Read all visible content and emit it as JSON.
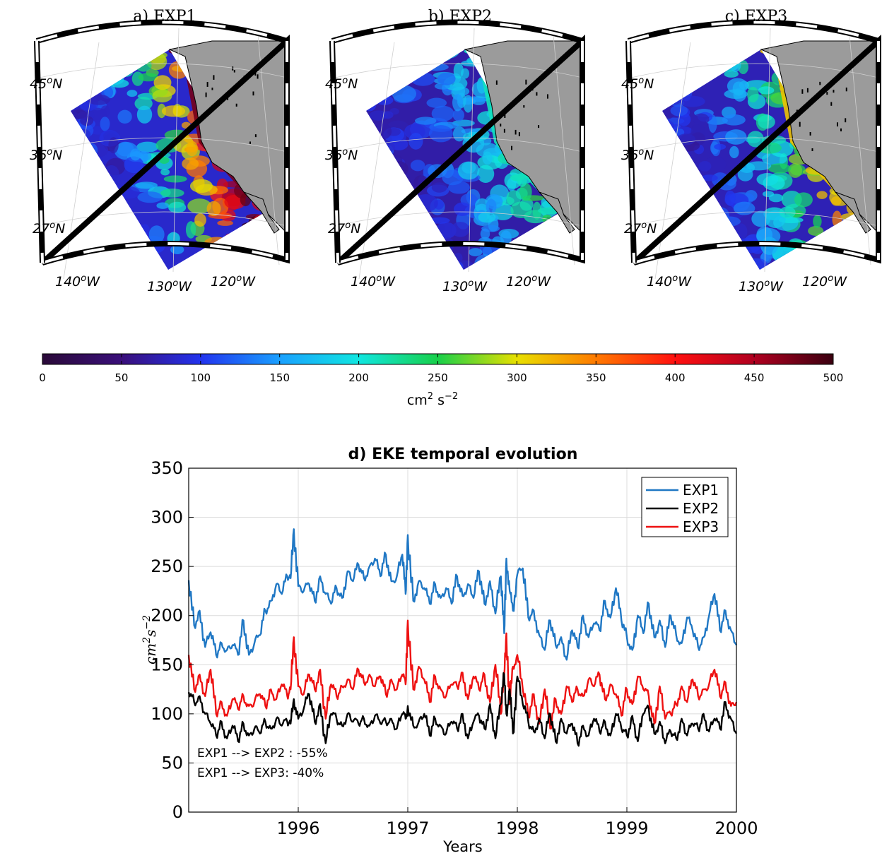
{
  "maps": {
    "colormap_stops": [
      "#2a0a38",
      "#3a0f7a",
      "#2233ee",
      "#1aa0ff",
      "#10e6e0",
      "#18d04a",
      "#e8e000",
      "#ff7a00",
      "#ff1010",
      "#b00020",
      "#3a0010"
    ],
    "panels": [
      {
        "title": "a) EXP1",
        "intensity": 1.0
      },
      {
        "title": "b) EXP2",
        "intensity": 0.38
      },
      {
        "title": "c) EXP3",
        "intensity": 0.62
      }
    ],
    "lat_labels": [
      "45",
      "36",
      "27"
    ],
    "lat_unit": "N",
    "lon_labels": [
      "140",
      "130",
      "120"
    ],
    "lon_unit": "W",
    "degree_symbol": "o"
  },
  "colorbar": {
    "ticks": [
      "0",
      "50",
      "100",
      "150",
      "200",
      "250",
      "300",
      "350",
      "400",
      "450",
      "500"
    ],
    "range": [
      0,
      500
    ],
    "label": "cm",
    "label_sup1": "2",
    "label_mid": " s",
    "label_sup2": "−2"
  },
  "chart_data": {
    "type": "line",
    "title": "d) EKE temporal evolution",
    "xlabel": "Years",
    "ylabel_base1": "cm",
    "ylabel_sup1": "2",
    "ylabel_base2": "s",
    "ylabel_sup2": "−2",
    "xlim": [
      1995.0,
      2000.0
    ],
    "ylim": [
      0,
      350
    ],
    "xticks": [
      1996,
      1997,
      1998,
      1999,
      2000
    ],
    "yticks": [
      0,
      50,
      100,
      150,
      200,
      250,
      300,
      350
    ],
    "grid": true,
    "legend_position": "top-right",
    "annotations": [
      "EXP1 --> EXP2 : -55%",
      "EXP1 --> EXP3: -40%"
    ],
    "series": [
      {
        "name": "EXP1",
        "color": "#1f77c4",
        "x": [
          1995.0,
          1995.05,
          1995.1,
          1995.15,
          1995.2,
          1995.25,
          1995.3,
          1995.35,
          1995.4,
          1995.45,
          1995.5,
          1995.55,
          1995.6,
          1995.65,
          1995.7,
          1995.75,
          1995.8,
          1995.85,
          1995.9,
          1995.93,
          1995.96,
          1996.0,
          1996.05,
          1996.1,
          1996.15,
          1996.2,
          1996.25,
          1996.3,
          1996.35,
          1996.4,
          1996.45,
          1996.5,
          1996.55,
          1996.6,
          1996.65,
          1996.7,
          1996.75,
          1996.8,
          1996.85,
          1996.9,
          1996.95,
          1996.98,
          1997.0,
          1997.05,
          1997.1,
          1997.15,
          1997.2,
          1997.25,
          1997.3,
          1997.35,
          1997.4,
          1997.45,
          1997.5,
          1997.55,
          1997.6,
          1997.65,
          1997.7,
          1997.75,
          1997.8,
          1997.85,
          1997.88,
          1997.9,
          1997.93,
          1997.96,
          1998.0,
          1998.05,
          1998.1,
          1998.15,
          1998.2,
          1998.25,
          1998.3,
          1998.35,
          1998.4,
          1998.45,
          1998.5,
          1998.55,
          1998.6,
          1998.65,
          1998.7,
          1998.75,
          1998.8,
          1998.85,
          1998.9,
          1998.95,
          1999.0,
          1999.05,
          1999.1,
          1999.15,
          1999.2,
          1999.25,
          1999.3,
          1999.35,
          1999.4,
          1999.45,
          1999.5,
          1999.55,
          1999.6,
          1999.65,
          1999.7,
          1999.75,
          1999.8,
          1999.85,
          1999.9,
          1999.95,
          2000.0
        ],
        "values": [
          236,
          190,
          205,
          168,
          183,
          160,
          172,
          165,
          170,
          160,
          195,
          160,
          172,
          180,
          205,
          215,
          232,
          222,
          240,
          238,
          288,
          230,
          225,
          232,
          215,
          240,
          222,
          212,
          228,
          218,
          245,
          235,
          252,
          238,
          250,
          258,
          240,
          262,
          235,
          240,
          262,
          222,
          282,
          215,
          235,
          228,
          212,
          232,
          218,
          228,
          212,
          240,
          220,
          232,
          218,
          245,
          212,
          235,
          202,
          240,
          182,
          258,
          225,
          205,
          242,
          248,
          198,
          205,
          180,
          165,
          195,
          170,
          178,
          155,
          185,
          168,
          200,
          178,
          192,
          185,
          215,
          198,
          228,
          195,
          178,
          165,
          200,
          182,
          212,
          178,
          195,
          168,
          200,
          180,
          172,
          198,
          185,
          168,
          178,
          200,
          222,
          185,
          205,
          185,
          170
        ]
      },
      {
        "name": "EXP2",
        "color": "#000000",
        "x": [
          1995.0,
          1995.05,
          1995.1,
          1995.15,
          1995.2,
          1995.25,
          1995.3,
          1995.35,
          1995.4,
          1995.45,
          1995.5,
          1995.55,
          1995.6,
          1995.65,
          1995.7,
          1995.75,
          1995.8,
          1995.85,
          1995.9,
          1995.93,
          1995.96,
          1996.0,
          1996.05,
          1996.1,
          1996.15,
          1996.2,
          1996.25,
          1996.3,
          1996.35,
          1996.4,
          1996.45,
          1996.5,
          1996.55,
          1996.6,
          1996.65,
          1996.7,
          1996.75,
          1996.8,
          1996.85,
          1996.9,
          1996.95,
          1996.98,
          1997.0,
          1997.05,
          1997.1,
          1997.15,
          1997.2,
          1997.25,
          1997.3,
          1997.35,
          1997.4,
          1997.45,
          1997.5,
          1997.55,
          1997.6,
          1997.65,
          1997.7,
          1997.75,
          1997.8,
          1997.85,
          1997.88,
          1997.9,
          1997.93,
          1997.96,
          1998.0,
          1998.05,
          1998.1,
          1998.15,
          1998.2,
          1998.25,
          1998.3,
          1998.35,
          1998.4,
          1998.45,
          1998.5,
          1998.55,
          1998.6,
          1998.65,
          1998.7,
          1998.75,
          1998.8,
          1998.85,
          1998.9,
          1998.95,
          1999.0,
          1999.05,
          1999.1,
          1999.15,
          1999.2,
          1999.25,
          1999.3,
          1999.35,
          1999.4,
          1999.45,
          1999.5,
          1999.55,
          1999.6,
          1999.65,
          1999.7,
          1999.75,
          1999.8,
          1999.85,
          1999.9,
          1999.95,
          2000.0
        ],
        "values": [
          122,
          112,
          118,
          100,
          90,
          78,
          92,
          75,
          88,
          72,
          90,
          78,
          85,
          80,
          92,
          85,
          95,
          88,
          92,
          90,
          115,
          95,
          105,
          120,
          92,
          110,
          70,
          100,
          95,
          88,
          100,
          92,
          90,
          95,
          88,
          98,
          90,
          92,
          95,
          85,
          100,
          95,
          108,
          88,
          92,
          100,
          78,
          95,
          88,
          80,
          92,
          85,
          100,
          75,
          92,
          98,
          85,
          110,
          75,
          110,
          140,
          100,
          125,
          80,
          138,
          110,
          92,
          82,
          95,
          75,
          100,
          72,
          95,
          80,
          90,
          70,
          88,
          78,
          95,
          82,
          92,
          78,
          100,
          85,
          78,
          98,
          72,
          100,
          105,
          80,
          92,
          70,
          82,
          75,
          95,
          78,
          90,
          85,
          100,
          82,
          95,
          85,
          112,
          95,
          80
        ]
      },
      {
        "name": "EXP3",
        "color": "#ee1111",
        "x": [
          1995.0,
          1995.05,
          1995.1,
          1995.15,
          1995.2,
          1995.25,
          1995.3,
          1995.35,
          1995.4,
          1995.45,
          1995.5,
          1995.55,
          1995.6,
          1995.65,
          1995.7,
          1995.75,
          1995.8,
          1995.85,
          1995.9,
          1995.93,
          1995.96,
          1996.0,
          1996.05,
          1996.1,
          1996.15,
          1996.2,
          1996.25,
          1996.3,
          1996.35,
          1996.4,
          1996.45,
          1996.5,
          1996.55,
          1996.6,
          1996.65,
          1996.7,
          1996.75,
          1996.8,
          1996.85,
          1996.9,
          1996.95,
          1996.98,
          1997.0,
          1997.05,
          1997.1,
          1997.15,
          1997.2,
          1997.25,
          1997.3,
          1997.35,
          1997.4,
          1997.45,
          1997.5,
          1997.55,
          1997.6,
          1997.65,
          1997.7,
          1997.75,
          1997.8,
          1997.85,
          1997.88,
          1997.9,
          1997.93,
          1997.96,
          1998.0,
          1998.05,
          1998.1,
          1998.15,
          1998.2,
          1998.25,
          1998.3,
          1998.35,
          1998.4,
          1998.45,
          1998.5,
          1998.55,
          1998.6,
          1998.65,
          1998.7,
          1998.75,
          1998.8,
          1998.85,
          1998.9,
          1998.95,
          1999.0,
          1999.05,
          1999.1,
          1999.15,
          1999.2,
          1999.25,
          1999.3,
          1999.35,
          1999.4,
          1999.45,
          1999.5,
          1999.55,
          1999.6,
          1999.65,
          1999.7,
          1999.75,
          1999.8,
          1999.85,
          1999.9,
          1999.95,
          2000.0
        ],
        "values": [
          160,
          125,
          140,
          118,
          145,
          100,
          112,
          98,
          115,
          105,
          118,
          108,
          112,
          120,
          108,
          125,
          115,
          130,
          118,
          125,
          178,
          128,
          120,
          140,
          125,
          145,
          95,
          130,
          118,
          128,
          135,
          125,
          145,
          132,
          140,
          128,
          138,
          120,
          135,
          125,
          140,
          130,
          195,
          125,
          148,
          135,
          112,
          138,
          125,
          118,
          130,
          128,
          142,
          115,
          138,
          125,
          140,
          112,
          150,
          100,
          140,
          182,
          110,
          148,
          160,
          125,
          98,
          120,
          90,
          125,
          85,
          115,
          100,
          128,
          112,
          125,
          118,
          135,
          128,
          140,
          115,
          130,
          120,
          98,
          125,
          110,
          138,
          125,
          118,
          90,
          128,
          95,
          100,
          110,
          128,
          112,
          135,
          118,
          125,
          130,
          145,
          118,
          132,
          108,
          112
        ]
      }
    ]
  }
}
